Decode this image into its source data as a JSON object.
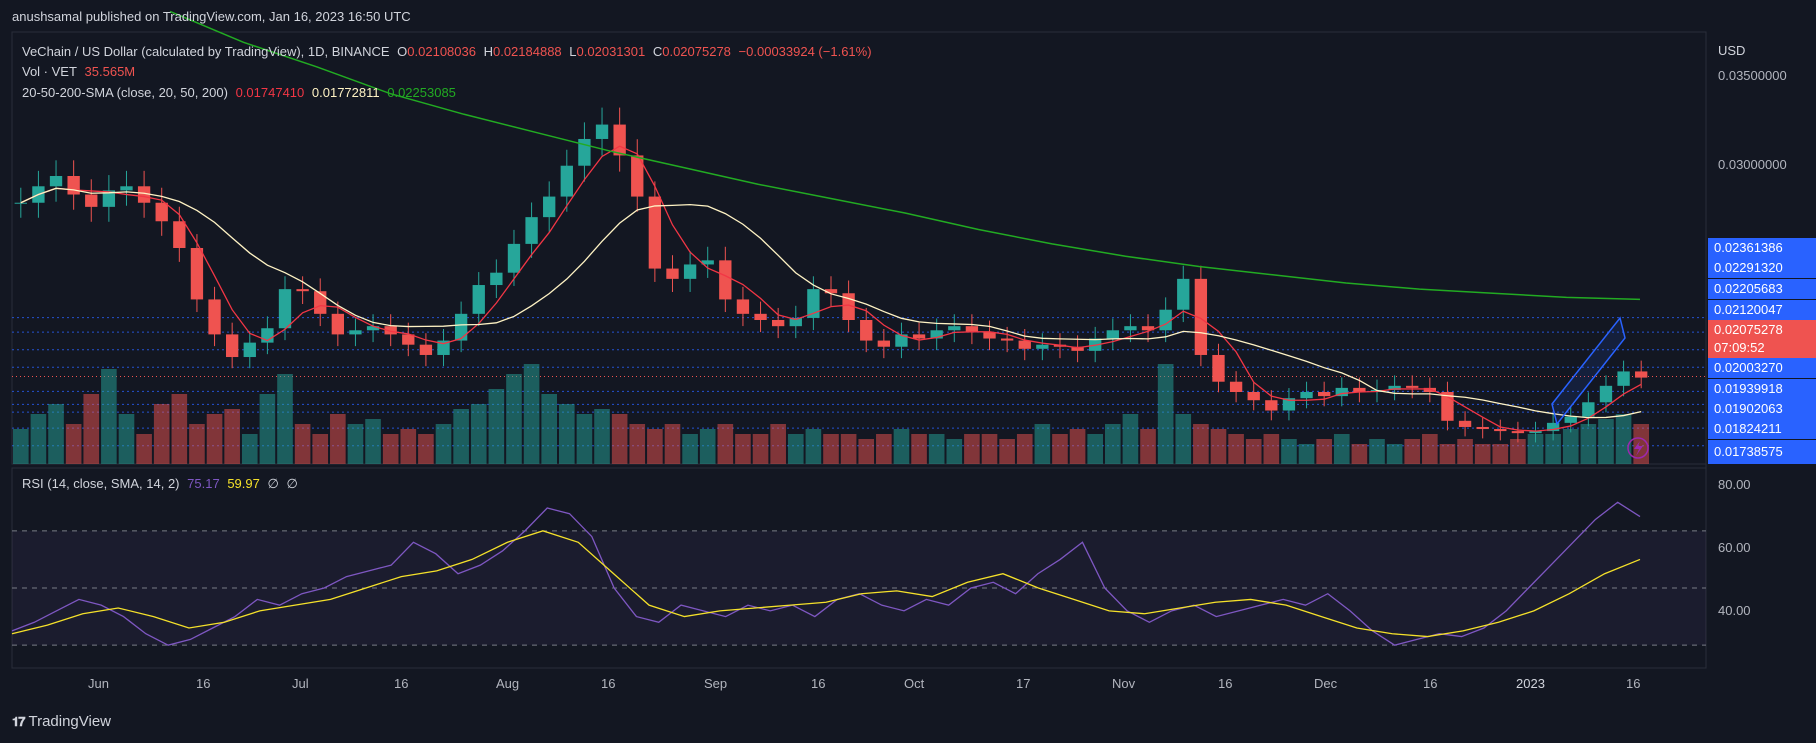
{
  "header": {
    "published": "anushsamal published on TradingView.com, Jan 16, 2023 16:50 UTC"
  },
  "legend": {
    "symbol": "VeChain / US Dollar (calculated by TradingView), 1D, BINANCE",
    "o_label": "O",
    "o_value": "0.02108036",
    "h_label": "H",
    "h_value": "0.02184888",
    "l_label": "L",
    "l_value": "0.02031301",
    "c_label": "C",
    "c_value": "0.02075278",
    "change": "−0.00033924 (−1.61%)",
    "vol_label": "Vol · VET",
    "vol_value": "35.565M",
    "sma_label": "20-50-200-SMA (close, 20, 50, 200)",
    "sma20": "0.01747410",
    "sma50": "0.01772811",
    "sma200": "0.02253085",
    "rsi_label": "RSI (14, close, SMA, 14, 2)",
    "rsi_value": "75.17",
    "rsi_sma": "59.97",
    "rsi_x1": "∅",
    "rsi_x2": "∅"
  },
  "price_axis": {
    "currency": "USD",
    "ticks": [
      "0.03500000",
      "0.03000000"
    ],
    "levels": [
      "0.02361386",
      "0.02291320",
      "0.02205683",
      "0.02120047",
      "0.02003270",
      "0.01939918",
      "0.01902063",
      "0.01824211",
      "0.01738575"
    ],
    "current": "0.02075278",
    "countdown": "07:09:52"
  },
  "rsi_axis": {
    "ticks": [
      "80.00",
      "60.00",
      "40.00"
    ]
  },
  "time_axis": {
    "labels": [
      "Jun",
      "16",
      "Jul",
      "16",
      "Aug",
      "16",
      "Sep",
      "16",
      "Oct",
      "17",
      "Nov",
      "16",
      "Dec",
      "16",
      "2023",
      "16"
    ]
  },
  "footer": {
    "brand": "TradingView"
  },
  "colors": {
    "up": "#26a69a",
    "down": "#ef5350",
    "sma20": "#f23645",
    "sma50": "#fff3c4",
    "sma200": "#22ab22",
    "rsi": "#7e57c2",
    "rsi_sma": "#f5e12a",
    "blue": "#2962ff"
  },
  "chart_data": {
    "type": "candlestick",
    "price_scale": [
      0.0165,
      0.0375
    ],
    "x_labels": [
      "Jun",
      "16",
      "Jul",
      "16",
      "Aug",
      "16",
      "Sep",
      "16",
      "Oct",
      "17",
      "Nov",
      "16",
      "Dec",
      "16",
      "2023",
      "16"
    ],
    "close_path": [
      0.0292,
      0.03,
      0.0305,
      0.0296,
      0.029,
      0.0298,
      0.03,
      0.0292,
      0.0283,
      0.027,
      0.0245,
      0.0228,
      0.0217,
      0.0224,
      0.0231,
      0.025,
      0.0249,
      0.0238,
      0.0228,
      0.023,
      0.0232,
      0.0228,
      0.0223,
      0.0218,
      0.0225,
      0.0238,
      0.0252,
      0.0258,
      0.0272,
      0.0285,
      0.0295,
      0.031,
      0.0323,
      0.033,
      0.0315,
      0.0295,
      0.026,
      0.0255,
      0.0262,
      0.0264,
      0.0245,
      0.0238,
      0.0235,
      0.0232,
      0.0236,
      0.025,
      0.0248,
      0.0235,
      0.0225,
      0.0222,
      0.0228,
      0.0226,
      0.023,
      0.0232,
      0.0229,
      0.0226,
      0.0225,
      0.0221,
      0.0223,
      0.0222,
      0.022,
      0.0226,
      0.023,
      0.0232,
      0.023,
      0.024,
      0.0255,
      0.0218,
      0.0205,
      0.02,
      0.0196,
      0.0191,
      0.0197,
      0.02,
      0.0198,
      0.0202,
      0.02,
      0.0201,
      0.0203,
      0.0202,
      0.02,
      0.0186,
      0.0183,
      0.0182,
      0.0181,
      0.018,
      0.0181,
      0.0185,
      0.0188,
      0.0195,
      0.0203,
      0.021,
      0.0207
    ],
    "sma200_path": [
      0.0385,
      0.037,
      0.0358,
      0.0345,
      0.0335,
      0.0326,
      0.0317,
      0.0309,
      0.0301,
      0.0294,
      0.0287,
      0.0279,
      0.0272,
      0.0266,
      0.0261,
      0.0257,
      0.0253,
      0.025,
      0.0248,
      0.0246,
      0.0245
    ],
    "volume_relative": [
      0.35,
      0.5,
      0.6,
      0.4,
      0.7,
      0.95,
      0.5,
      0.3,
      0.6,
      0.7,
      0.4,
      0.5,
      0.55,
      0.3,
      0.7,
      0.9,
      0.4,
      0.3,
      0.5,
      0.4,
      0.45,
      0.3,
      0.35,
      0.3,
      0.4,
      0.55,
      0.6,
      0.75,
      0.9,
      1.0,
      0.7,
      0.6,
      0.5,
      0.55,
      0.5,
      0.4,
      0.35,
      0.4,
      0.3,
      0.35,
      0.4,
      0.3,
      0.3,
      0.4,
      0.3,
      0.35,
      0.3,
      0.3,
      0.25,
      0.3,
      0.35,
      0.3,
      0.3,
      0.25,
      0.3,
      0.3,
      0.25,
      0.3,
      0.4,
      0.3,
      0.35,
      0.3,
      0.4,
      0.5,
      0.35,
      1.0,
      0.5,
      0.4,
      0.35,
      0.3,
      0.25,
      0.3,
      0.25,
      0.2,
      0.25,
      0.3,
      0.2,
      0.25,
      0.2,
      0.25,
      0.3,
      0.2,
      0.25,
      0.2,
      0.2,
      0.25,
      0.3,
      0.3,
      0.35,
      0.4,
      0.45,
      0.5,
      0.4
    ],
    "rsi_path": [
      35,
      38,
      42,
      46,
      44,
      40,
      34,
      30,
      32,
      36,
      40,
      46,
      44,
      48,
      50,
      54,
      56,
      58,
      66,
      62,
      55,
      58,
      63,
      70,
      78,
      76,
      68,
      50,
      40,
      38,
      44,
      42,
      40,
      44,
      42,
      44,
      40,
      46,
      48,
      44,
      42,
      46,
      44,
      50,
      52,
      48,
      55,
      60,
      66,
      50,
      42,
      38,
      42,
      44,
      40,
      42,
      44,
      46,
      44,
      48,
      42,
      35,
      30,
      32,
      34,
      33,
      36,
      42,
      50,
      58,
      66,
      74,
      80,
      75
    ],
    "rsi_sma_path": [
      34,
      37,
      41,
      43,
      40,
      36,
      38,
      42,
      44,
      46,
      50,
      54,
      56,
      60,
      66,
      70,
      66,
      55,
      44,
      40,
      42,
      43,
      44,
      45,
      48,
      49,
      47,
      52,
      55,
      50,
      46,
      42,
      41,
      43,
      45,
      46,
      44,
      40,
      36,
      34,
      33,
      35,
      38,
      42,
      48,
      55,
      60
    ],
    "rsi_scale": [
      22,
      92
    ]
  }
}
